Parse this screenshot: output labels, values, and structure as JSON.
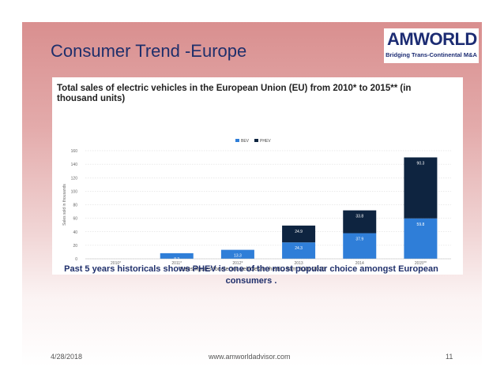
{
  "slide": {
    "title": "Consumer Trend -Europe",
    "caption": "Past 5 years historicals shows PHEV is one of the most popular choice amongst European consumers .",
    "footer_date": "4/28/2018",
    "footer_site": "www.amworldadvisor.com",
    "page_number": "11"
  },
  "logo": {
    "main_text": "AMWORLD",
    "sub_text": "Bridging Trans-Continental M&A",
    "color": "#1c2c73"
  },
  "chart_data": {
    "type": "bar",
    "stacked": true,
    "title": "Total sales of electric vehicles in the European Union (EU) from 2010* to 2015** (in thousand units)",
    "xlabel": "Sales figures for electric vehicles in the EU from 2010-2015",
    "ylabel": "Sales sold in thousands",
    "categories": [
      "2010*",
      "2011*",
      "2012*",
      "2013",
      "2014",
      "2015**"
    ],
    "ylim": [
      0,
      160
    ],
    "yticks": [
      0,
      20,
      40,
      60,
      80,
      100,
      120,
      140,
      160
    ],
    "grid": true,
    "legend_position": "top-center",
    "series": [
      {
        "name": "BEV",
        "color": "#2f7ed8",
        "values": [
          0,
          8.3,
          13.3,
          24.3,
          37.9,
          59.8
        ],
        "labels": [
          "",
          "8.3",
          "13.3",
          "24.3",
          "37.9",
          "59.8"
        ]
      },
      {
        "name": "PHEV",
        "color": "#0e2440",
        "values": [
          0,
          0,
          0,
          24.9,
          33.8,
          90.3
        ],
        "labels": [
          "",
          "",
          "",
          "24.9",
          "33.8",
          "90.3"
        ]
      }
    ]
  }
}
